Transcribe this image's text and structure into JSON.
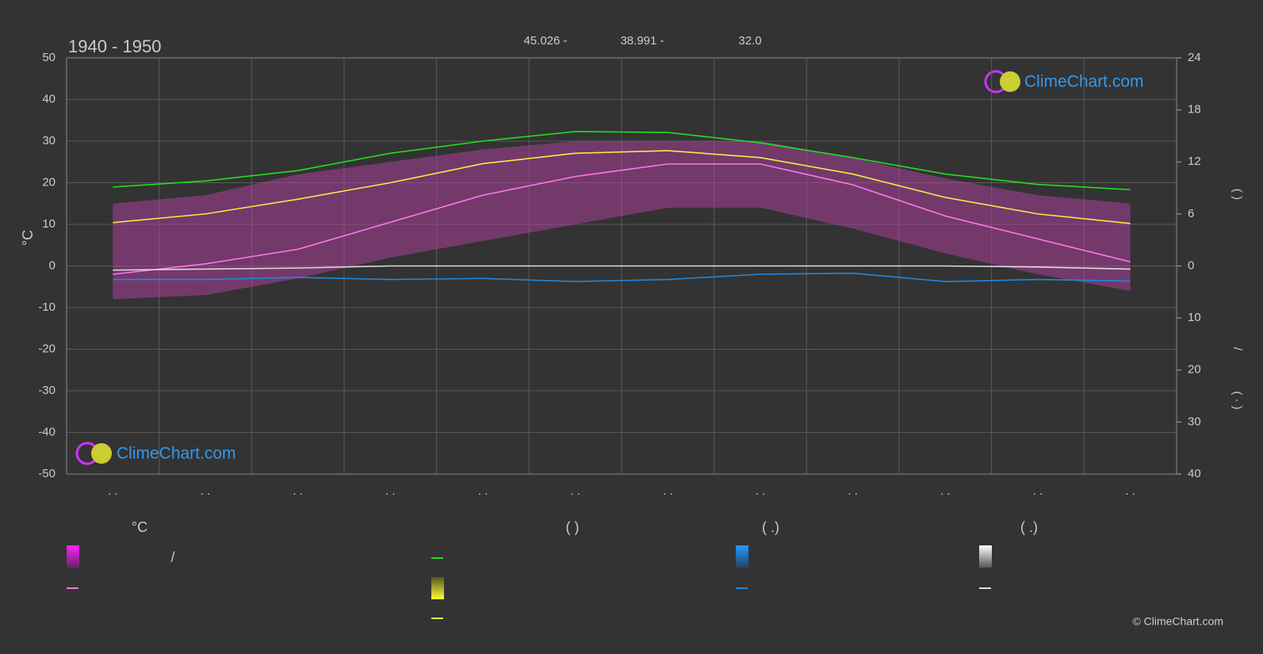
{
  "chart_data": {
    "type": "line",
    "title": "1940 - 1950",
    "header": [
      "45.026 -",
      "38.991 -",
      "32.0"
    ],
    "ylabel": "°C",
    "y2label_parts": [
      "(   )",
      "/",
      "( · )"
    ],
    "categories": [
      ". .",
      ". .",
      ". .",
      ". .",
      ". .",
      ". .",
      ". .",
      ". .",
      ". .",
      ". .",
      ". .",
      ". ."
    ],
    "ylim": [
      -50,
      50
    ],
    "yticks": [
      -50,
      -40,
      -30,
      -20,
      -10,
      0,
      10,
      20,
      30,
      40,
      50
    ],
    "y2lim": [
      0,
      24
    ],
    "y2ticks": [
      0,
      6,
      12,
      18,
      24
    ],
    "y3lim": [
      0,
      40
    ],
    "y3ticks": [
      10,
      20,
      30,
      40
    ],
    "grid": true,
    "range": {
      "color": "#c040b0",
      "upper": [
        15,
        17,
        22,
        25,
        28,
        30,
        30,
        30,
        26,
        21,
        17,
        15
      ],
      "lower": [
        -8,
        -7,
        -3,
        2,
        6,
        10,
        14,
        14,
        9,
        3,
        -2,
        -6
      ]
    },
    "series": [
      {
        "color": "#22dd22",
        "axis": "y2",
        "values": [
          9.1,
          9.8,
          11.0,
          13.0,
          14.4,
          15.5,
          15.4,
          14.2,
          12.5,
          10.6,
          9.4,
          8.8
        ]
      },
      {
        "color": "#eeee44",
        "axis": "y2",
        "values": [
          5.0,
          6.0,
          7.7,
          9.6,
          11.8,
          13.0,
          13.3,
          12.5,
          10.6,
          7.9,
          6.0,
          4.9
        ]
      },
      {
        "color": "#ff77ee",
        "axis": "y",
        "values": [
          -2,
          0.5,
          4,
          10.5,
          17,
          21.5,
          24.5,
          24.5,
          19.5,
          12,
          6.5,
          1
        ]
      },
      {
        "color": "#2288dd",
        "axis": "y3",
        "values": [
          2.6,
          2.6,
          2.2,
          2.6,
          2.4,
          3.0,
          2.6,
          1.6,
          1.4,
          3.0,
          2.6,
          2.9
        ]
      },
      {
        "color": "#dddddd",
        "axis": "y3",
        "values": [
          0.8,
          0.6,
          0.4,
          0,
          0,
          0,
          0,
          0,
          0,
          0,
          0.2,
          0.6
        ]
      }
    ],
    "legend": {
      "headings": [
        "°C",
        "(          )",
        "(   .)",
        "(   .)"
      ],
      "texts": [
        "/"
      ]
    },
    "logo": "ClimeChart.com",
    "copyright": "© ClimeChart.com"
  }
}
